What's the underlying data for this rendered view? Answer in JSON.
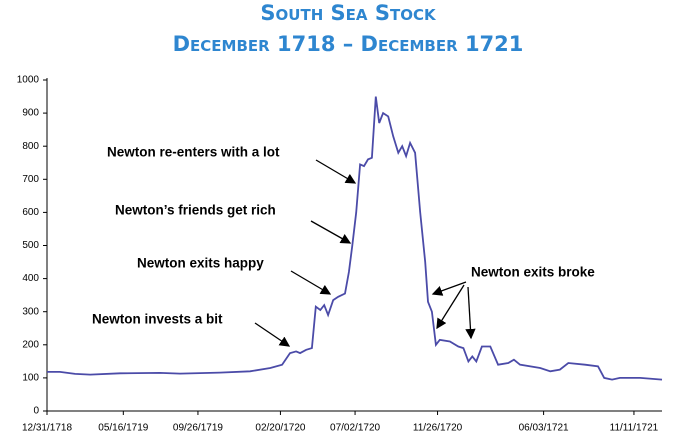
{
  "chart_data": {
    "type": "line",
    "title": "South Sea Stock",
    "subtitle": "December 1718 – December 1721",
    "annotations": [
      "Newton invests a bit",
      "Newton exits happy",
      "Newton’s friends get rich",
      "Newton re-enters with a lot",
      "Newton exits broke"
    ],
    "x": [
      "1718-12-31",
      "1719-01-23",
      "1719-02-19",
      "1719-03-18",
      "1719-05-10",
      "1719-07-20",
      "1719-08-25",
      "1719-11-04",
      "1719-12-28",
      "1720-02-02",
      "1720-02-23",
      "1720-03-08",
      "1720-03-19",
      "1720-03-26",
      "1720-04-06",
      "1720-04-16",
      "1720-04-23",
      "1720-05-01",
      "1720-05-08",
      "1720-05-15",
      "1720-05-24",
      "1720-06-02",
      "1720-06-14",
      "1720-06-21",
      "1720-06-27",
      "1720-07-04",
      "1720-07-11",
      "1720-07-18",
      "1720-07-25",
      "1720-08-01",
      "1720-08-08",
      "1720-08-14",
      "1720-08-21",
      "1720-08-30",
      "1720-09-08",
      "1720-09-17",
      "1720-09-24",
      "1720-10-01",
      "1720-10-08",
      "1720-10-17",
      "1720-10-26",
      "1720-11-04",
      "1720-11-09",
      "1720-11-16",
      "1720-11-23",
      "1720-11-30",
      "1720-12-18",
      "1721-01-02",
      "1721-01-11",
      "1721-01-20",
      "1721-01-27",
      "1721-02-03",
      "1721-02-13",
      "1721-02-28",
      "1721-03-14",
      "1721-04-01",
      "1721-04-11",
      "1721-04-22",
      "1721-05-28",
      "1721-06-15",
      "1721-07-02",
      "1721-07-17",
      "1721-08-16",
      "1721-09-08",
      "1721-09-19",
      "1721-10-03",
      "1721-10-17",
      "1721-11-22",
      "1721-12-31"
    ],
    "series": [
      {
        "color": "#4b4ba8",
        "values": [
          118,
          118,
          112,
          110,
          114,
          115,
          113,
          116,
          120,
          130,
          140,
          175,
          180,
          175,
          185,
          190,
          315,
          305,
          320,
          290,
          335,
          345,
          355,
          420,
          500,
          600,
          745,
          740,
          760,
          765,
          950,
          870,
          900,
          890,
          830,
          780,
          800,
          770,
          810,
          780,
          600,
          450,
          330,
          300,
          200,
          215,
          210,
          195,
          190,
          150,
          165,
          150,
          195,
          195,
          140,
          145,
          155,
          140,
          130,
          120,
          125,
          145,
          140,
          135,
          100,
          95,
          100,
          100,
          95
        ]
      }
    ],
    "xlim": [
      "1718-12-31",
      "1721-12-31"
    ],
    "xticks": [
      {
        "value": "1718-12-31",
        "label": "12/31/1718"
      },
      {
        "value": "1719-05-16",
        "label": "05/16/1719"
      },
      {
        "value": "1719-09-26",
        "label": "09/26/1719"
      },
      {
        "value": "1720-02-20",
        "label": "02/20/1720"
      },
      {
        "value": "1720-07-02",
        "label": "07/02/1720"
      },
      {
        "value": "1720-11-26",
        "label": "11/26/1720"
      },
      {
        "value": "1721-06-03",
        "label": "06/03/1721"
      },
      {
        "value": "1721-11-11",
        "label": "11/11/1721"
      }
    ],
    "ylim": [
      0,
      1000
    ],
    "yticks": [
      0,
      100,
      200,
      300,
      400,
      500,
      600,
      700,
      800,
      900,
      1000
    ],
    "grid": false
  }
}
